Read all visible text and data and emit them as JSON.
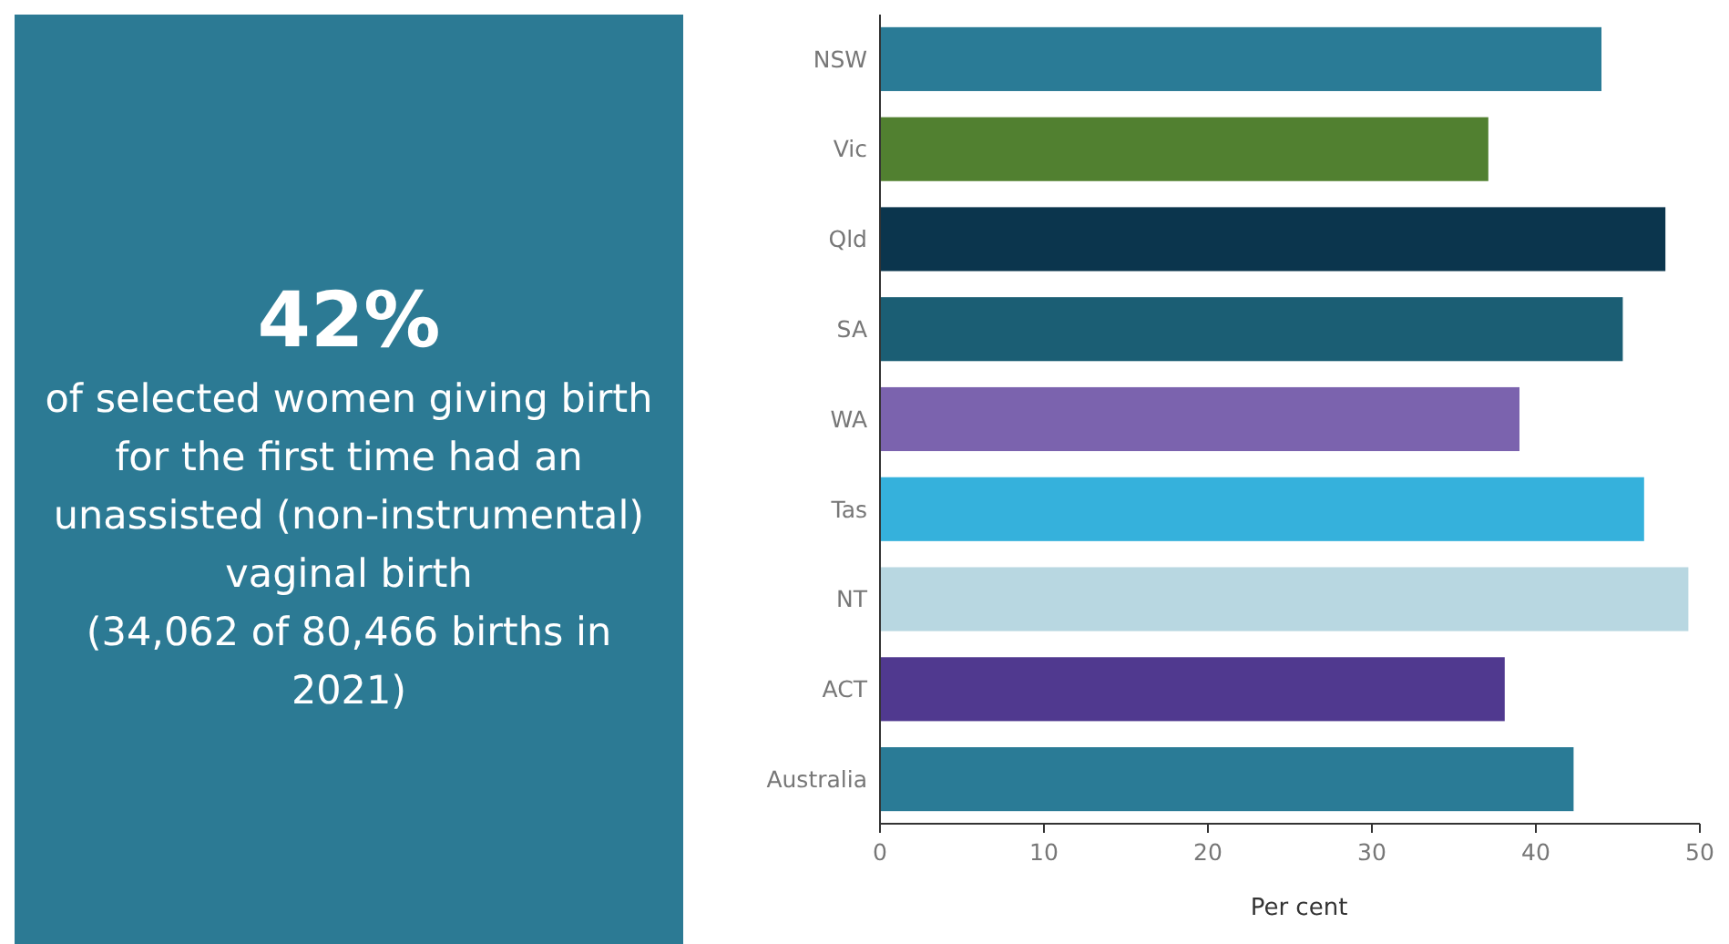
{
  "chart_data": [
    {
      "type": "other",
      "title": "42%",
      "subtitle": "of selected women giving birth for the first time had an unassisted (non-instrumental) vaginal birth",
      "annotations": [
        "(34,062 of 80,466 births in 2021)"
      ]
    },
    {
      "type": "bar",
      "orientation": "horizontal",
      "categories": [
        "NSW",
        "Vic",
        "Qld",
        "SA",
        "WA",
        "Tas",
        "NT",
        "ACT",
        "Australia"
      ],
      "values": [
        44.0,
        37.1,
        47.9,
        45.3,
        39.0,
        46.6,
        49.3,
        38.1,
        42.3
      ],
      "colors": [
        "#2a7b96",
        "#518030",
        "#0b354d",
        "#1b5e74",
        "#7b63ae",
        "#35b1dc",
        "#b8d7e1",
        "#50398f",
        "#2a7b96"
      ],
      "xlim": [
        0,
        50
      ],
      "xticks": [
        0,
        10,
        20,
        30,
        40,
        50
      ],
      "xlabel": "Per cent"
    }
  ]
}
